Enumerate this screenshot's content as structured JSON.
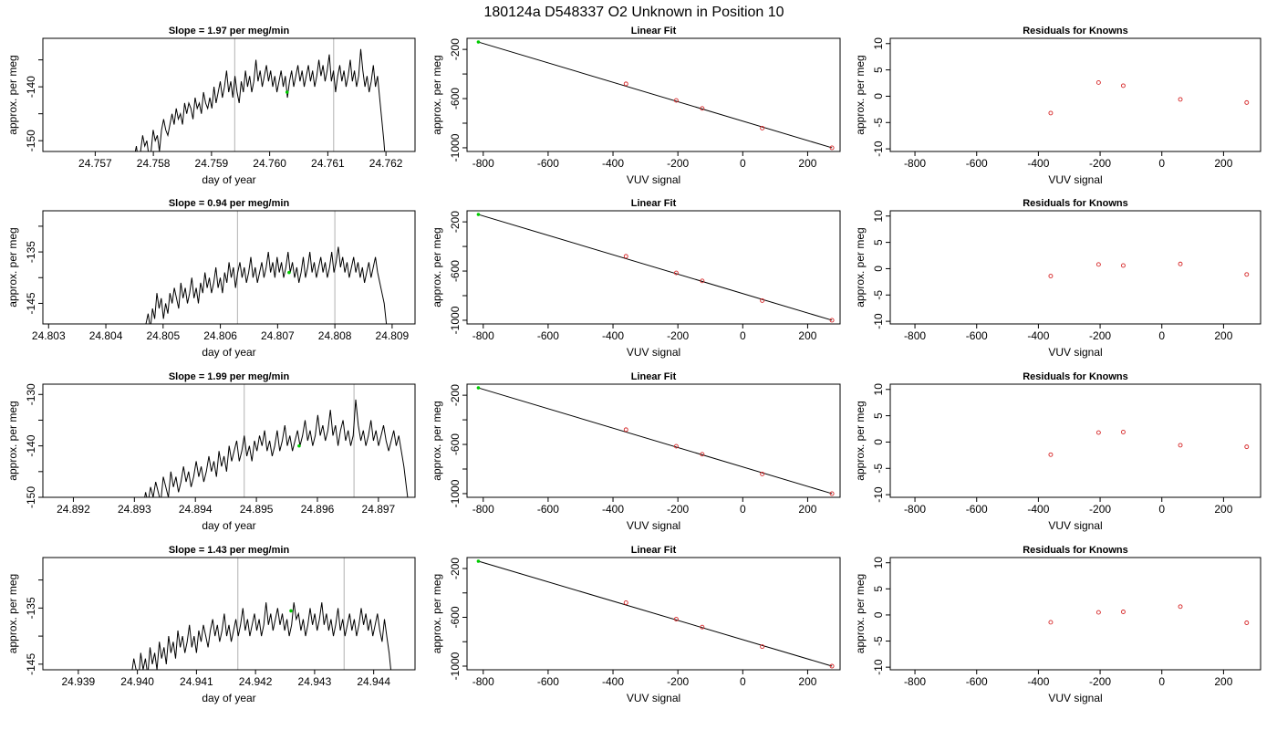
{
  "figure_title": "180124a     D548337   O2 Unknown in Position  10",
  "chart_data": [
    {
      "type": "line",
      "title": "Slope =  1.97  per meg/min",
      "xlabel": "day of year",
      "ylabel": "approx. per meg",
      "xlim": [
        24.7561,
        24.7625
      ],
      "ylim": [
        -152,
        -131
      ],
      "xticks": [
        24.757,
        24.758,
        24.759,
        24.76,
        24.761,
        24.762
      ],
      "xtick_labels": [
        "24.757",
        "24.758",
        "24.759",
        "24.760",
        "24.761",
        "24.762"
      ],
      "yticks": [
        -150,
        -140
      ],
      "ytick_labels": [
        "-150",
        "-140"
      ],
      "yminor_ticks": [
        -145,
        -135
      ],
      "vlines": [
        24.7594,
        24.7611
      ],
      "series_start": 24.7576,
      "series_end": 24.762,
      "series_values": [
        -152,
        -155,
        -153,
        -151,
        -154,
        -152,
        -149,
        -151,
        -150,
        -153,
        -152,
        -148,
        -150,
        -149,
        -152,
        -148,
        -146,
        -148,
        -149,
        -147,
        -145,
        -147,
        -144,
        -146,
        -145,
        -147,
        -143,
        -145,
        -143,
        -144,
        -146,
        -142,
        -144,
        -143,
        -145,
        -141,
        -143,
        -144,
        -142,
        -144,
        -140,
        -143,
        -141,
        -139,
        -142,
        -140,
        -137,
        -141,
        -139,
        -142,
        -138,
        -141,
        -143,
        -139,
        -141,
        -137,
        -140,
        -138,
        -141,
        -139,
        -135,
        -139,
        -137,
        -140,
        -138,
        -136,
        -139,
        -137,
        -140,
        -138,
        -141,
        -139,
        -137,
        -140,
        -138,
        -142,
        -139,
        -137,
        -140,
        -138,
        -136,
        -139,
        -137,
        -140,
        -138,
        -136,
        -139,
        -137,
        -140,
        -138,
        -135,
        -138,
        -136,
        -139,
        -137,
        -134,
        -139,
        -137,
        -141,
        -138,
        -136,
        -139,
        -137,
        -140,
        -138,
        -135,
        -139,
        -137,
        -140,
        -138,
        -133,
        -137,
        -140,
        -138,
        -141,
        -139,
        -136,
        -140,
        -138,
        -142,
        -146,
        -150,
        -155
      ],
      "marker": [
        24.7603,
        -141
      ]
    },
    {
      "type": "scatter",
      "title": "Linear Fit",
      "xlabel": "VUV signal",
      "ylabel": "approx. per meg",
      "xlim": [
        -850,
        300
      ],
      "ylim": [
        -1030,
        -110
      ],
      "xticks": [
        -800,
        -600,
        -400,
        -200,
        0,
        200
      ],
      "xtick_labels": [
        "-800",
        "-600",
        "-400",
        "-200",
        "0",
        "200"
      ],
      "yticks": [
        -200,
        -600,
        -1000
      ],
      "ytick_labels": [
        "-200",
        "-600",
        "-1000"
      ],
      "yminor_ticks": [
        -400,
        -800
      ],
      "fit_line": [
        [
          -815,
          -140
        ],
        [
          275,
          -1000
        ]
      ],
      "points": [
        [
          -360,
          -480
        ],
        [
          -205,
          -615
        ],
        [
          -125,
          -680
        ],
        [
          60,
          -840
        ],
        [
          275,
          -1000
        ]
      ],
      "unknown_point": [
        -815,
        -140
      ]
    },
    {
      "type": "scatter",
      "title": "Residuals for Knowns",
      "xlabel": "VUV signal",
      "ylabel": "approx. per meg",
      "xlim": [
        -880,
        320
      ],
      "ylim": [
        -10.5,
        11
      ],
      "xticks": [
        -800,
        -600,
        -400,
        -200,
        0,
        200
      ],
      "xtick_labels": [
        "-800",
        "-600",
        "-400",
        "-200",
        "0",
        "200"
      ],
      "yticks": [
        -10,
        -5,
        0,
        5,
        10
      ],
      "ytick_labels": [
        "-10",
        "-5",
        "0",
        "5",
        "10"
      ],
      "points": [
        [
          -360,
          -3.2
        ],
        [
          -205,
          2.6
        ],
        [
          -125,
          2.0
        ],
        [
          60,
          -0.6
        ],
        [
          275,
          -1.2
        ]
      ]
    },
    {
      "type": "line",
      "title": "Slope =  0.94  per meg/min",
      "xlabel": "day of year",
      "ylabel": "approx. per meg",
      "xlim": [
        24.8029,
        24.8094
      ],
      "ylim": [
        -149,
        -127
      ],
      "xticks": [
        24.803,
        24.804,
        24.805,
        24.806,
        24.807,
        24.808,
        24.809
      ],
      "xtick_labels": [
        "24.803",
        "24.804",
        "24.805",
        "24.806",
        "24.807",
        "24.808",
        "24.809"
      ],
      "yticks": [
        -145,
        -135
      ],
      "ytick_labels": [
        "-145",
        "-135"
      ],
      "yminor_ticks": [
        -140,
        -130
      ],
      "vlines": [
        24.8063,
        24.808
      ],
      "series_start": 24.8047,
      "series_end": 24.8089,
      "series_values": [
        -149,
        -147,
        -150,
        -146,
        -148,
        -143,
        -146,
        -144,
        -148,
        -145,
        -147,
        -143,
        -145,
        -142,
        -144,
        -146,
        -141,
        -144,
        -142,
        -145,
        -143,
        -140,
        -144,
        -142,
        -145,
        -141,
        -143,
        -139,
        -142,
        -140,
        -143,
        -141,
        -138,
        -142,
        -140,
        -143,
        -139,
        -141,
        -137,
        -140,
        -138,
        -142,
        -139,
        -137,
        -140,
        -138,
        -141,
        -139,
        -136,
        -140,
        -138,
        -141,
        -139,
        -137,
        -140,
        -138,
        -135,
        -139,
        -137,
        -140,
        -136,
        -139,
        -137,
        -140,
        -138,
        -135,
        -139,
        -137,
        -140,
        -138,
        -141,
        -139,
        -136,
        -140,
        -138,
        -135,
        -139,
        -137,
        -140,
        -138,
        -136,
        -139,
        -137,
        -140,
        -138,
        -135,
        -139,
        -137,
        -134,
        -138,
        -136,
        -139,
        -137,
        -140,
        -138,
        -136,
        -139,
        -137,
        -140,
        -138,
        -141,
        -139,
        -137,
        -140,
        -138,
        -136,
        -139,
        -141,
        -143,
        -145,
        -149
      ],
      "marker": [
        24.8072,
        -139
      ]
    },
    {
      "type": "scatter",
      "title": "Linear Fit",
      "xlabel": "VUV signal",
      "ylabel": "approx. per meg",
      "xlim": [
        -850,
        300
      ],
      "ylim": [
        -1030,
        -110
      ],
      "xticks": [
        -800,
        -600,
        -400,
        -200,
        0,
        200
      ],
      "xtick_labels": [
        "-800",
        "-600",
        "-400",
        "-200",
        "0",
        "200"
      ],
      "yticks": [
        -200,
        -600,
        -1000
      ],
      "ytick_labels": [
        "-200",
        "-600",
        "-1000"
      ],
      "yminor_ticks": [
        -400,
        -800
      ],
      "fit_line": [
        [
          -815,
          -140
        ],
        [
          275,
          -1000
        ]
      ],
      "points": [
        [
          -360,
          -480
        ],
        [
          -205,
          -615
        ],
        [
          -125,
          -680
        ],
        [
          60,
          -840
        ],
        [
          275,
          -1000
        ]
      ],
      "unknown_point": [
        -815,
        -140
      ]
    },
    {
      "type": "scatter",
      "title": "Residuals for Knowns",
      "xlabel": "VUV signal",
      "ylabel": "approx. per meg",
      "xlim": [
        -880,
        320
      ],
      "ylim": [
        -10.5,
        11
      ],
      "xticks": [
        -800,
        -600,
        -400,
        -200,
        0,
        200
      ],
      "xtick_labels": [
        "-800",
        "-600",
        "-400",
        "-200",
        "0",
        "200"
      ],
      "yticks": [
        -10,
        -5,
        0,
        5,
        10
      ],
      "ytick_labels": [
        "-10",
        "-5",
        "0",
        "5",
        "10"
      ],
      "points": [
        [
          -360,
          -1.4
        ],
        [
          -205,
          0.8
        ],
        [
          -125,
          0.6
        ],
        [
          60,
          0.9
        ],
        [
          275,
          -1.1
        ]
      ]
    },
    {
      "type": "line",
      "title": "Slope =  1.99  per meg/min",
      "xlabel": "day of year",
      "ylabel": "approx. per meg",
      "xlim": [
        24.8915,
        24.8976
      ],
      "ylim": [
        -150,
        -128
      ],
      "xticks": [
        24.892,
        24.893,
        24.894,
        24.895,
        24.896,
        24.897
      ],
      "xtick_labels": [
        "24.892",
        "24.893",
        "24.894",
        "24.895",
        "24.896",
        "24.897"
      ],
      "yticks": [
        -150,
        -140,
        -130
      ],
      "ytick_labels": [
        "-150",
        "-140",
        "-130"
      ],
      "yminor_ticks": [
        -145,
        -135
      ],
      "vlines": [
        24.8948,
        24.8966
      ],
      "series_start": 24.8931,
      "series_end": 24.8975,
      "series_values": [
        -150,
        -152,
        -149,
        -151,
        -148,
        -150,
        -147,
        -149,
        -151,
        -146,
        -148,
        -150,
        -145,
        -148,
        -146,
        -149,
        -147,
        -144,
        -147,
        -145,
        -148,
        -146,
        -143,
        -146,
        -144,
        -147,
        -145,
        -142,
        -145,
        -143,
        -146,
        -141,
        -144,
        -142,
        -145,
        -140,
        -143,
        -141,
        -139,
        -143,
        -141,
        -138,
        -142,
        -140,
        -143,
        -139,
        -141,
        -138,
        -140,
        -137,
        -141,
        -139,
        -142,
        -140,
        -137,
        -141,
        -139,
        -136,
        -140,
        -138,
        -141,
        -139,
        -137,
        -140,
        -138,
        -135,
        -139,
        -137,
        -140,
        -138,
        -134,
        -138,
        -136,
        -139,
        -137,
        -133,
        -138,
        -136,
        -140,
        -137,
        -135,
        -139,
        -137,
        -140,
        -138,
        -131,
        -136,
        -139,
        -137,
        -140,
        -138,
        -135,
        -139,
        -137,
        -140,
        -138,
        -136,
        -139,
        -141,
        -139,
        -137,
        -140,
        -138,
        -141,
        -144,
        -148,
        -152
      ],
      "marker": [
        24.8957,
        -140
      ]
    },
    {
      "type": "scatter",
      "title": "Linear Fit",
      "xlabel": "VUV signal",
      "ylabel": "approx. per meg",
      "xlim": [
        -850,
        300
      ],
      "ylim": [
        -1030,
        -110
      ],
      "xticks": [
        -800,
        -600,
        -400,
        -200,
        0,
        200
      ],
      "xtick_labels": [
        "-800",
        "-600",
        "-400",
        "-200",
        "0",
        "200"
      ],
      "yticks": [
        -200,
        -600,
        -1000
      ],
      "ytick_labels": [
        "-200",
        "-600",
        "-1000"
      ],
      "yminor_ticks": [
        -400,
        -800
      ],
      "fit_line": [
        [
          -815,
          -140
        ],
        [
          275,
          -1000
        ]
      ],
      "points": [
        [
          -360,
          -480
        ],
        [
          -205,
          -615
        ],
        [
          -125,
          -680
        ],
        [
          60,
          -840
        ],
        [
          275,
          -1000
        ]
      ],
      "unknown_point": [
        -815,
        -140
      ]
    },
    {
      "type": "scatter",
      "title": "Residuals for Knowns",
      "xlabel": "VUV signal",
      "ylabel": "approx. per meg",
      "xlim": [
        -880,
        320
      ],
      "ylim": [
        -10.5,
        11
      ],
      "xticks": [
        -800,
        -600,
        -400,
        -200,
        0,
        200
      ],
      "xtick_labels": [
        "-800",
        "-600",
        "-400",
        "-200",
        "0",
        "200"
      ],
      "yticks": [
        -10,
        -5,
        0,
        5,
        10
      ],
      "ytick_labels": [
        "-10",
        "-5",
        "0",
        "5",
        "10"
      ],
      "points": [
        [
          -360,
          -2.4
        ],
        [
          -205,
          1.8
        ],
        [
          -125,
          1.9
        ],
        [
          60,
          -0.6
        ],
        [
          275,
          -0.9
        ]
      ]
    },
    {
      "type": "line",
      "title": "Slope =  1.43  per meg/min",
      "xlabel": "day of year",
      "ylabel": "approx. per meg",
      "xlim": [
        24.9384,
        24.9447
      ],
      "ylim": [
        -146,
        -126
      ],
      "xticks": [
        24.939,
        24.94,
        24.941,
        24.942,
        24.943,
        24.944
      ],
      "xtick_labels": [
        "24.939",
        "24.940",
        "24.941",
        "24.942",
        "24.943",
        "24.944"
      ],
      "yticks": [
        -145,
        -135
      ],
      "ytick_labels": [
        "-145",
        "-135"
      ],
      "yminor_ticks": [
        -140,
        -130
      ],
      "vlines": [
        24.9417,
        24.9435
      ],
      "series_start": 24.9399,
      "series_end": 24.9443,
      "series_values": [
        -147,
        -144,
        -146,
        -148,
        -143,
        -146,
        -144,
        -147,
        -142,
        -145,
        -143,
        -146,
        -141,
        -144,
        -142,
        -145,
        -140,
        -143,
        -141,
        -144,
        -139,
        -142,
        -140,
        -143,
        -141,
        -138,
        -142,
        -140,
        -143,
        -139,
        -141,
        -138,
        -140,
        -142,
        -139,
        -137,
        -140,
        -138,
        -141,
        -139,
        -136,
        -140,
        -138,
        -141,
        -139,
        -137,
        -140,
        -138,
        -135,
        -139,
        -137,
        -140,
        -138,
        -136,
        -139,
        -137,
        -140,
        -138,
        -134,
        -138,
        -136,
        -139,
        -137,
        -135,
        -138,
        -136,
        -139,
        -137,
        -140,
        -138,
        -134,
        -137,
        -136,
        -139,
        -137,
        -140,
        -138,
        -135,
        -138,
        -136,
        -139,
        -137,
        -134,
        -138,
        -136,
        -139,
        -137,
        -140,
        -138,
        -135,
        -139,
        -137,
        -140,
        -138,
        -136,
        -139,
        -137,
        -140,
        -138,
        -135,
        -138,
        -136,
        -139,
        -137,
        -140,
        -138,
        -136,
        -139,
        -141,
        -137,
        -140,
        -143,
        -147
      ],
      "marker": [
        24.9426,
        -135.5
      ]
    },
    {
      "type": "scatter",
      "title": "Linear Fit",
      "xlabel": "VUV signal",
      "ylabel": "approx. per meg",
      "xlim": [
        -850,
        300
      ],
      "ylim": [
        -1030,
        -110
      ],
      "xticks": [
        -800,
        -600,
        -400,
        -200,
        0,
        200
      ],
      "xtick_labels": [
        "-800",
        "-600",
        "-400",
        "-200",
        "0",
        "200"
      ],
      "yticks": [
        -200,
        -600,
        -1000
      ],
      "ytick_labels": [
        "-200",
        "-600",
        "-1000"
      ],
      "yminor_ticks": [
        -400,
        -800
      ],
      "fit_line": [
        [
          -815,
          -140
        ],
        [
          275,
          -1000
        ]
      ],
      "points": [
        [
          -360,
          -480
        ],
        [
          -205,
          -615
        ],
        [
          -125,
          -680
        ],
        [
          60,
          -840
        ],
        [
          275,
          -1000
        ]
      ],
      "unknown_point": [
        -815,
        -140
      ]
    },
    {
      "type": "scatter",
      "title": "Residuals for Knowns",
      "xlabel": "VUV signal",
      "ylabel": "approx. per meg",
      "xlim": [
        -880,
        320
      ],
      "ylim": [
        -10.5,
        11
      ],
      "xticks": [
        -800,
        -600,
        -400,
        -200,
        0,
        200
      ],
      "xtick_labels": [
        "-800",
        "-600",
        "-400",
        "-200",
        "0",
        "200"
      ],
      "yticks": [
        -10,
        -5,
        0,
        5,
        10
      ],
      "ytick_labels": [
        "-10",
        "-5",
        "0",
        "5",
        "10"
      ],
      "points": [
        [
          -360,
          -1.4
        ],
        [
          -205,
          0.5
        ],
        [
          -125,
          0.6
        ],
        [
          60,
          1.6
        ],
        [
          275,
          -1.5
        ]
      ]
    }
  ],
  "colors": {
    "axis": "#000000",
    "series_line": "#000000",
    "vline": "#bebebe",
    "known_point": "#d62728",
    "unknown_point": "#00cc00",
    "background": "#ffffff"
  }
}
